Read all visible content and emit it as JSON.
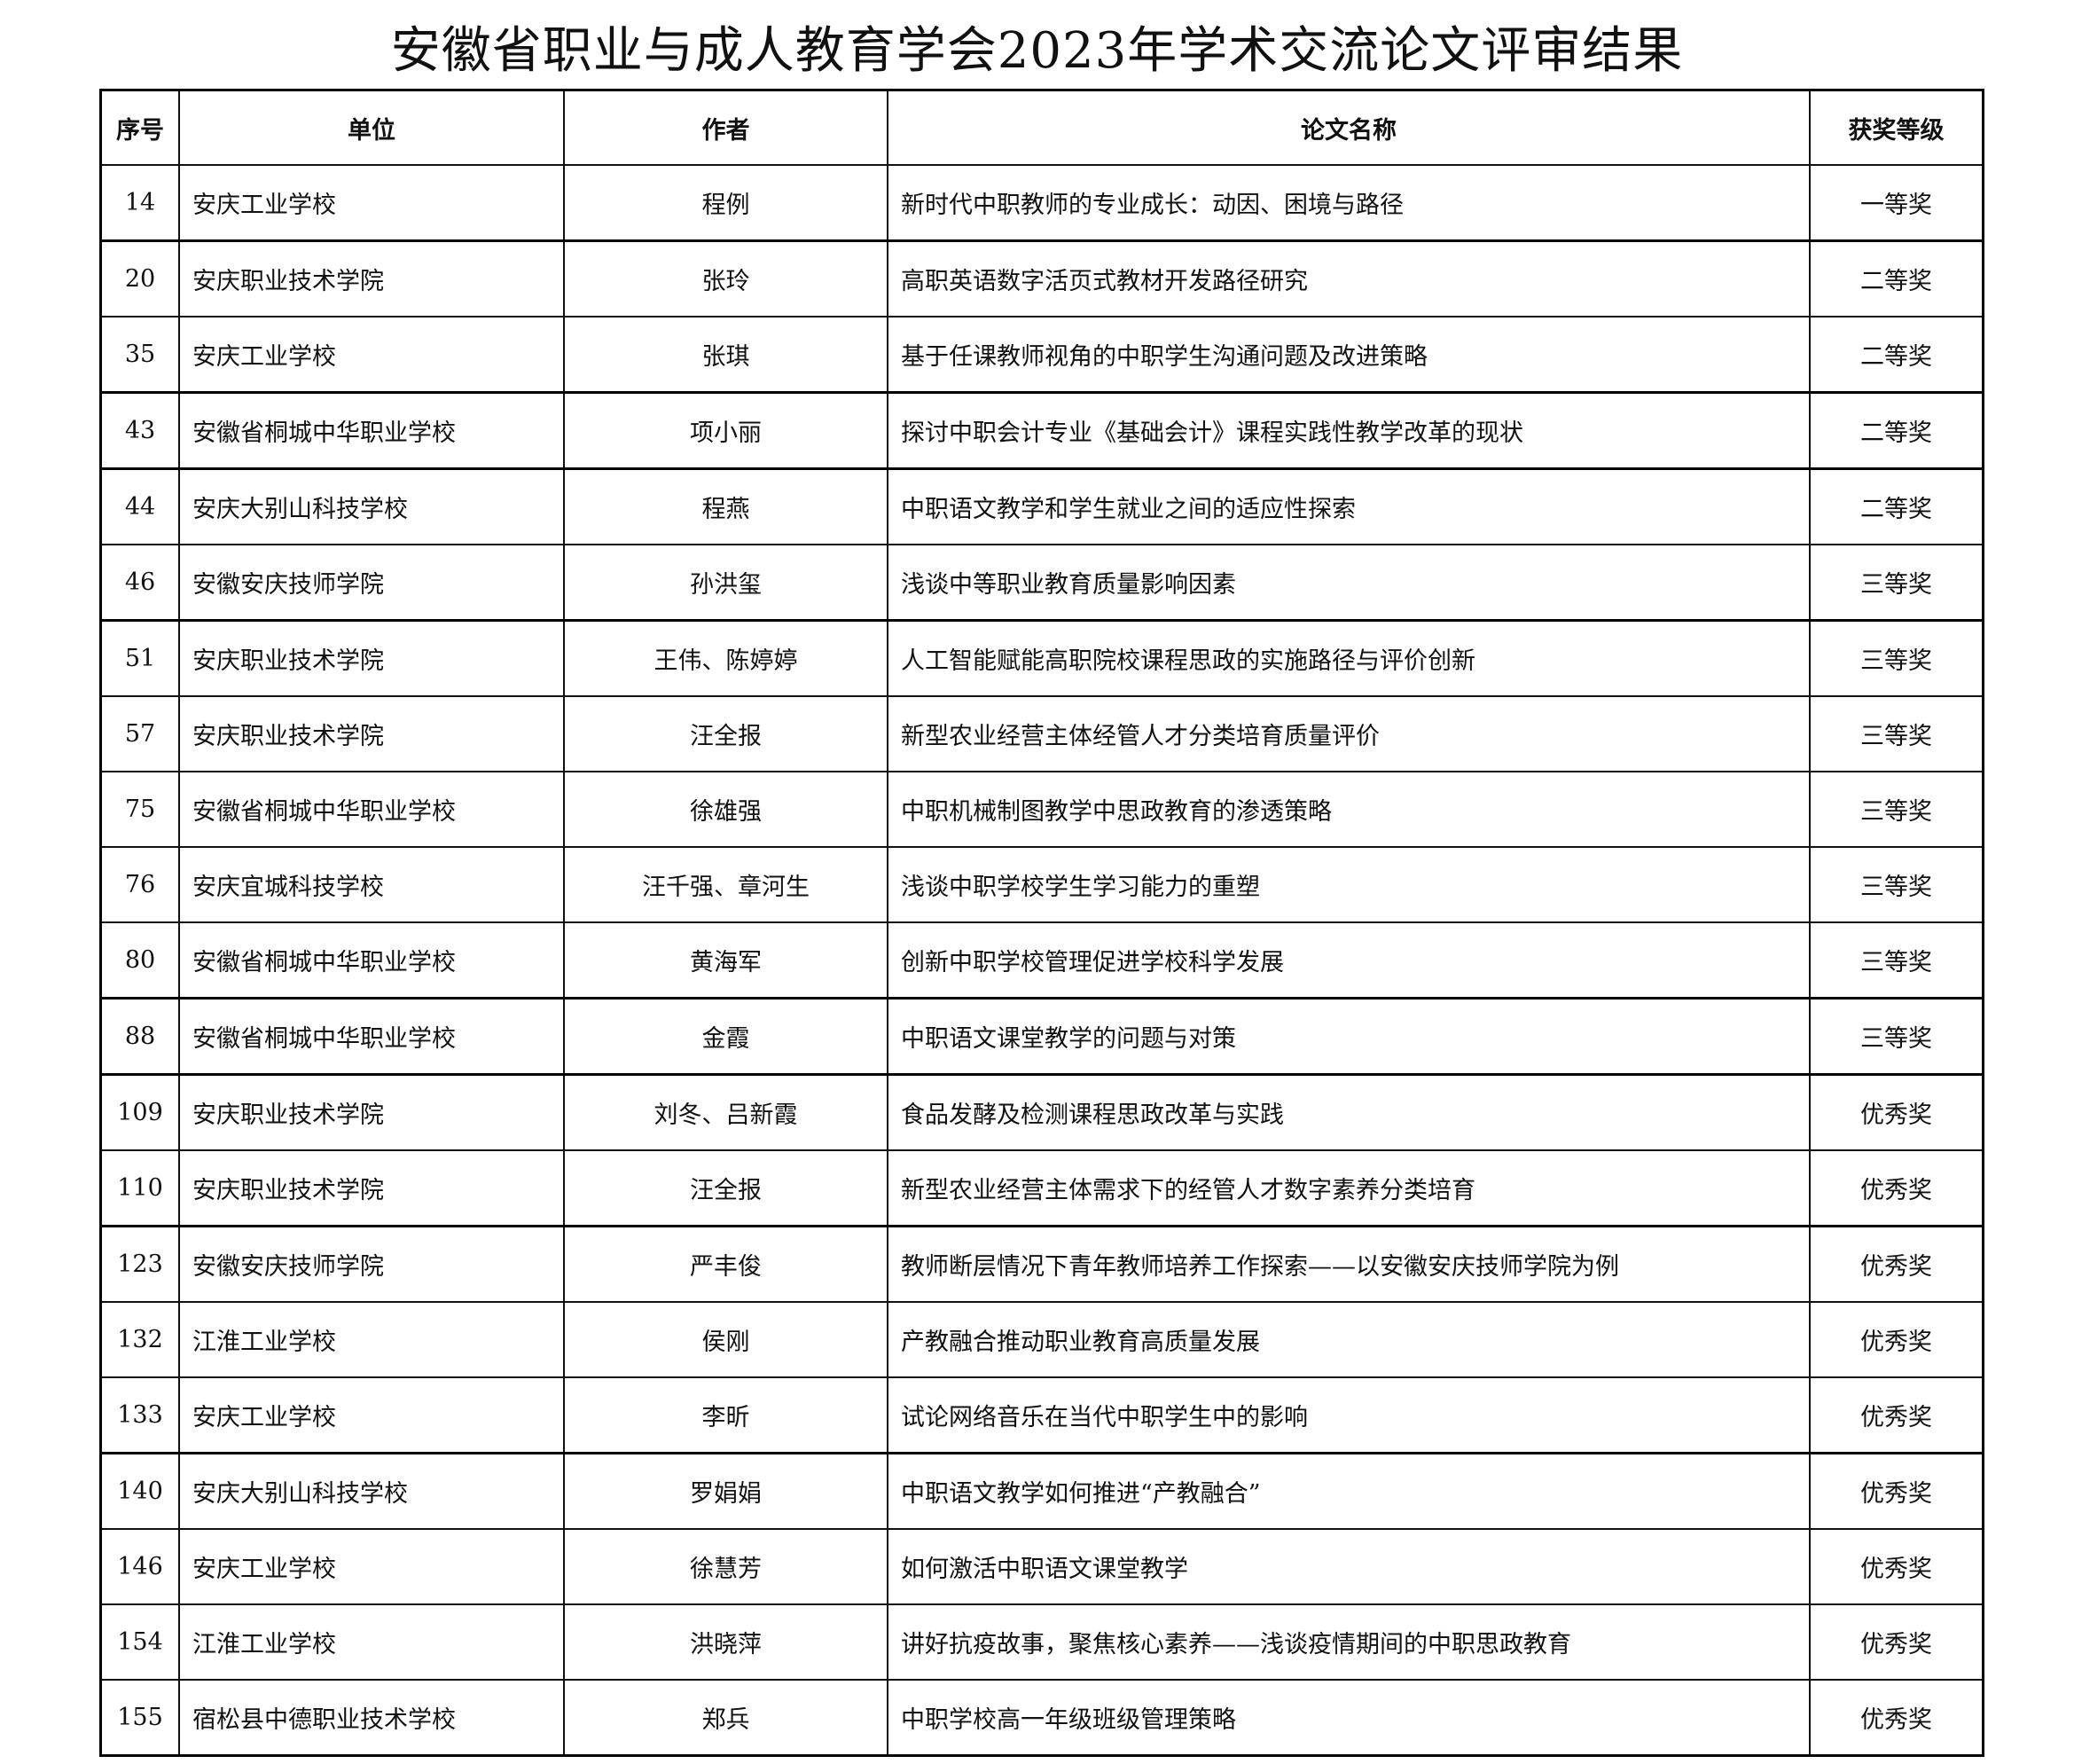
{
  "title": "安徽省职业与成人教育学会2023年学术交流论文评审结果",
  "headers": [
    "序号",
    "单位",
    "作者",
    "论文名称",
    "获奖等级"
  ],
  "rows": [
    [
      "14",
      "安庆工业学校",
      "程例",
      "新时代中职教师的专业成长：动因、困境与路径",
      "一等奖"
    ],
    [
      "20",
      "安庆职业技术学院",
      "张玲",
      "高职英语数字活页式教材开发路径研究",
      "二等奖"
    ],
    [
      "35",
      "安庆工业学校",
      "张琪",
      "基于任课教师视角的中职学生沟通问题及改进策略",
      "二等奖"
    ],
    [
      "43",
      "安徽省桐城中华职业学校",
      "项小丽",
      "探讨中职会计专业《基础会计》课程实践性教学改革的现状",
      "二等奖"
    ],
    [
      "44",
      "安庆大别山科技学校",
      "程燕",
      "中职语文教学和学生就业之间的适应性探索",
      "二等奖"
    ],
    [
      "46",
      "安徽安庆技师学院",
      "孙洪玺",
      "浅谈中等职业教育质量影响因素",
      "三等奖"
    ],
    [
      "51",
      "安庆职业技术学院",
      "王伟、陈婷婷",
      "人工智能赋能高职院校课程思政的实施路径与评价创新",
      "三等奖"
    ],
    [
      "57",
      "安庆职业技术学院",
      "汪全报",
      "新型农业经营主体经管人才分类培育质量评价",
      "三等奖"
    ],
    [
      "75",
      "安徽省桐城中华职业学校",
      "徐雄强",
      "中职机械制图教学中思政教育的渗透策略",
      "三等奖"
    ],
    [
      "76",
      "安庆宜城科技学校",
      "汪千强、章河生",
      "浅谈中职学校学生学习能力的重塑",
      "三等奖"
    ],
    [
      "80",
      "安徽省桐城中华职业学校",
      "黄海军",
      "创新中职学校管理促进学校科学发展",
      "三等奖"
    ],
    [
      "88",
      "安徽省桐城中华职业学校",
      "金霞",
      "中职语文课堂教学的问题与对策",
      "三等奖"
    ],
    [
      "109",
      "安庆职业技术学院",
      "刘冬、吕新霞",
      "食品发酵及检测课程思政改革与实践",
      "优秀奖"
    ],
    [
      "110",
      "安庆职业技术学院",
      "汪全报",
      "新型农业经营主体需求下的经管人才数字素养分类培育",
      "优秀奖"
    ],
    [
      "123",
      "安徽安庆技师学院",
      "严丰俊",
      "教师断层情况下青年教师培养工作探索——以安徽安庆技师学院为例",
      "优秀奖"
    ],
    [
      "132",
      "江淮工业学校",
      "侯刚",
      "产教融合推动职业教育高质量发展",
      "优秀奖"
    ],
    [
      "133",
      "安庆工业学校",
      "李昕",
      "试论网络音乐在当代中职学生中的影响",
      "优秀奖"
    ],
    [
      "140",
      "安庆大别山科技学校",
      "罗娟娟",
      "中职语文教学如何推进“产教融合”",
      "优秀奖"
    ],
    [
      "146",
      "安庆工业学校",
      "徐慧芳",
      "如何激活中职语文课堂教学",
      "优秀奖"
    ],
    [
      "154",
      "江淮工业学校",
      "洪晓萍",
      "讲好抗疫故事，聚焦核心素养——浅谈疫情期间的中职思政教育",
      "优秀奖"
    ],
    [
      "155",
      "宿松县中德职业技术学校",
      "郑兵",
      "中职学校高一年级班级管理策略",
      "优秀奖"
    ]
  ]
}
